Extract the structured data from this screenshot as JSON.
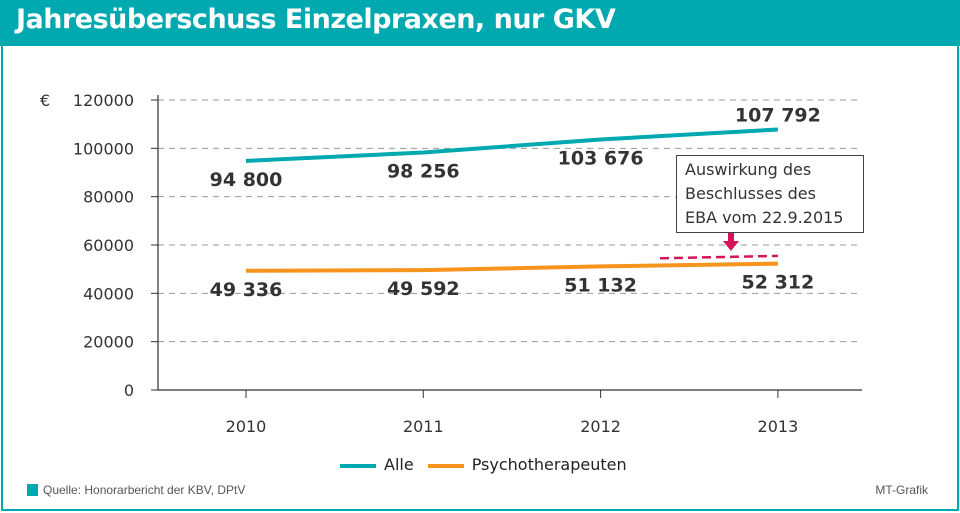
{
  "title": "Jahresüberschuss Einzelpraxen, nur GKV",
  "source": "Quelle: Honorarbericht der KBV, DPtV",
  "credit": "MT-Grafik",
  "annotation": "Auswirkung des\nBeschlusses des\nEBA vom 22.9.2015",
  "chart_data": {
    "type": "line",
    "ylabel": "€",
    "categories": [
      "2010",
      "2011",
      "2012",
      "2013"
    ],
    "ylim": [
      0,
      120000
    ],
    "yticks": [
      0,
      20000,
      40000,
      60000,
      80000,
      100000,
      120000
    ],
    "grid": "horizontal dashed",
    "legend": "bottom",
    "series": [
      {
        "name": "Alle",
        "color": "#00a9b0",
        "values": [
          94800,
          98256,
          103676,
          107792
        ],
        "labels": [
          "94 800",
          "98 256",
          "103 676",
          "107 792"
        ]
      },
      {
        "name": "Psychotherapeuten",
        "color": "#f7941d",
        "values": [
          49336,
          49592,
          51132,
          52312
        ],
        "labels": [
          "49 336",
          "49 592",
          "51 132",
          "52 312"
        ]
      }
    ],
    "annotation_line": {
      "color": "#d4145a",
      "style": "dashed",
      "x": [
        "2012.35",
        "2013"
      ],
      "y": [
        54500,
        55500
      ]
    }
  }
}
